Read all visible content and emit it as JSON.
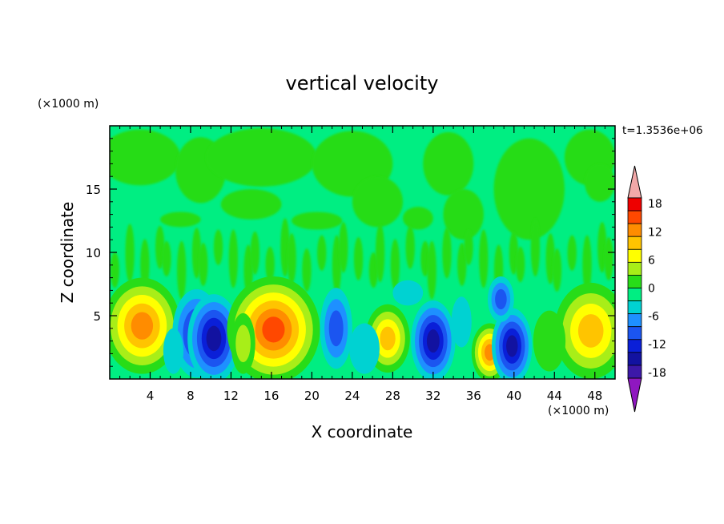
{
  "chart_data": {
    "type": "heatmap",
    "title": "vertical velocity",
    "xlabel": "X coordinate",
    "ylabel": "Z coordinate",
    "x_unit": "(×1000 m)",
    "y_unit": "(×1000 m)",
    "time_label": "t=1.3536e+06",
    "xlim": [
      0,
      50
    ],
    "ylim": [
      0,
      20
    ],
    "x_ticks": [
      4,
      8,
      12,
      16,
      20,
      24,
      28,
      32,
      36,
      40,
      44,
      48
    ],
    "x_tick_labels": [
      "4",
      "8",
      "12",
      "16",
      "20",
      "24",
      "28",
      "32",
      "36",
      "40",
      "44",
      "48"
    ],
    "y_ticks": [
      5,
      10,
      15
    ],
    "y_tick_labels": [
      "5",
      "10",
      "15"
    ],
    "colorbar": {
      "levels": [
        -21,
        -18,
        -15,
        -12,
        -9,
        -6,
        -3,
        0,
        3,
        6,
        9,
        12,
        15,
        18,
        21
      ],
      "labeled_levels": [
        18,
        12,
        6,
        0,
        -6,
        -12,
        -18
      ],
      "labels": [
        "18",
        "12",
        "6",
        "0",
        "-6",
        "-12",
        "-18"
      ],
      "colors": [
        "#7a0fb0",
        "#3c18a8",
        "#1212a0",
        "#0a1fd8",
        "#1b55f0",
        "#1e90ff",
        "#00d2d2",
        "#00ee82",
        "#28dc18",
        "#a8ee18",
        "#ffff00",
        "#ffc400",
        "#ff8c00",
        "#ff4800",
        "#ee0000",
        "#f0a0a0"
      ],
      "below_color": "#8f17c0",
      "above_color": "#f2a8a8"
    },
    "features": [
      {
        "x": 3.2,
        "z": 3.9,
        "value": 9
      },
      {
        "x": 8.3,
        "z": 3.6,
        "value": -11
      },
      {
        "x": 10.3,
        "z": 3.2,
        "value": -13
      },
      {
        "x": 16.2,
        "z": 3.8,
        "value": 12
      },
      {
        "x": 22.5,
        "z": 4.0,
        "value": -6
      },
      {
        "x": 27.6,
        "z": 3.1,
        "value": 8
      },
      {
        "x": 32.0,
        "z": 3.0,
        "value": -13
      },
      {
        "x": 37.6,
        "z": 2.2,
        "value": 12
      },
      {
        "x": 39.8,
        "z": 2.5,
        "value": -16
      },
      {
        "x": 38.7,
        "z": 6.5,
        "value": -7
      },
      {
        "x": 47.5,
        "z": 3.7,
        "value": 8
      }
    ]
  }
}
